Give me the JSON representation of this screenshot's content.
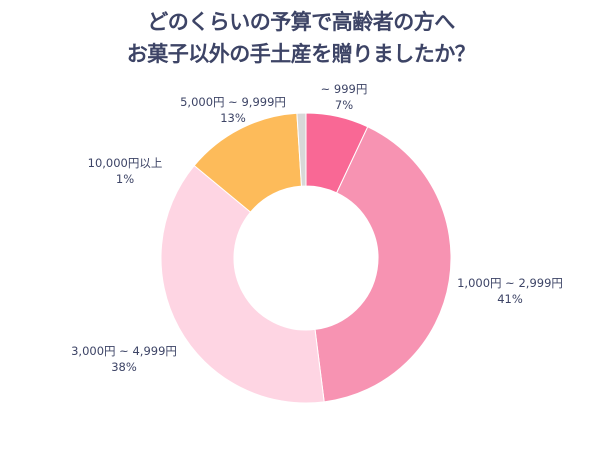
{
  "title": {
    "line1": "どのくらいの予算で高齢者の方へ",
    "line2": "お菓子以外の手土産を贈りましたか？"
  },
  "chart_data": {
    "type": "pie",
    "subtype": "donut",
    "title": "どのくらいの予算で高齢者の方へ お菓子以外の手土産を贈りましたか？",
    "categories": [
      "~ 999円",
      "1,000円 ~ 2,999円",
      "3,000円 ~ 4,999円",
      "5,000円 ~ 9,999円",
      "10,000円以上"
    ],
    "values": [
      7,
      41,
      38,
      13,
      1
    ],
    "unit": "%",
    "colors": [
      "#f96895",
      "#f793b2",
      "#fed5e3",
      "#fdbb5a",
      "#d8d8d8"
    ],
    "start_angle": "12 o'clock",
    "direction": "clockwise",
    "legend": "none (direct labels)"
  },
  "labels": [
    {
      "name": "~ 999円",
      "pct": "7%"
    },
    {
      "name": "1,000円 ~ 2,999円",
      "pct": "41%"
    },
    {
      "name": "3,000円 ~ 4,999円",
      "pct": "38%"
    },
    {
      "name": "5,000円 ~ 9,999円",
      "pct": "13%"
    },
    {
      "name": "10,000円以上",
      "pct": "1%"
    }
  ]
}
